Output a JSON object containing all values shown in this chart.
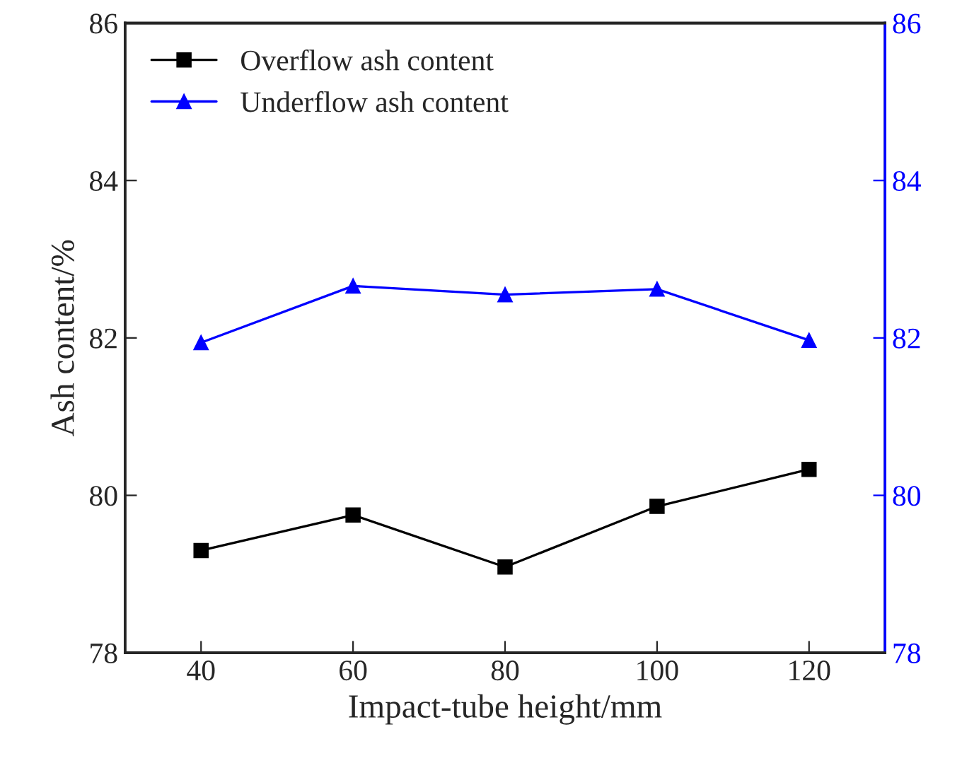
{
  "chart_data": {
    "type": "line",
    "xlabel": "Impact-tube height/mm",
    "ylabel": "Ash content/%",
    "x": [
      40,
      60,
      80,
      100,
      120
    ],
    "series": [
      {
        "name": "Overflow ash content",
        "color": "#000000",
        "marker": "square",
        "values": [
          79.3,
          79.75,
          79.09,
          79.86,
          80.33
        ]
      },
      {
        "name": "Underflow ash content",
        "color": "#0000ff",
        "marker": "triangle",
        "axis": "y2",
        "values": [
          81.94,
          82.66,
          82.55,
          82.62,
          81.97
        ]
      }
    ],
    "xlim": [
      30,
      130
    ],
    "xticks": [
      40,
      60,
      80,
      100,
      120
    ],
    "ylim": [
      78,
      86
    ],
    "yticks": [
      78,
      80,
      82,
      84,
      86
    ],
    "y2lim": [
      78,
      86
    ],
    "y2ticks": [
      78,
      80,
      82,
      84,
      86
    ],
    "grid": false,
    "legend": "top left",
    "line_style": "solid"
  }
}
